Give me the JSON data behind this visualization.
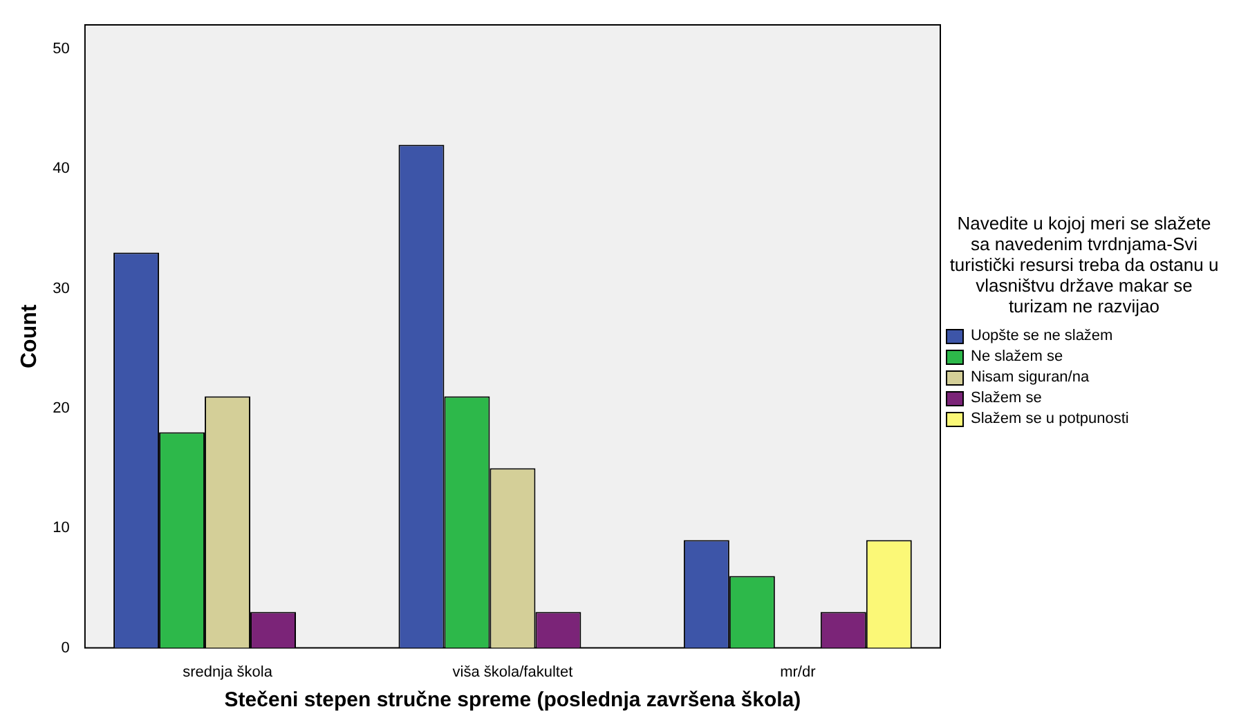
{
  "chart_data": {
    "type": "bar",
    "categories": [
      "srednja škola",
      "viša škola/fakultet",
      "mr/dr"
    ],
    "series": [
      {
        "name": "Uopšte se ne slažem",
        "color": "#3d55a8",
        "values": [
          33,
          42,
          9
        ]
      },
      {
        "name": "Ne slažem se",
        "color": "#2db84a",
        "values": [
          18,
          21,
          6
        ]
      },
      {
        "name": "Nisam siguran/na",
        "color": "#d4cf98",
        "values": [
          21,
          15,
          null
        ]
      },
      {
        "name": "Slažem se",
        "color": "#7b2478",
        "values": [
          3,
          3,
          3
        ]
      },
      {
        "name": "Slažem se u potpunosti",
        "color": "#fbf877",
        "values": [
          null,
          null,
          9
        ]
      }
    ],
    "xlabel": "Stečeni stepen stručne spreme (poslednja završena škola)",
    "ylabel": "Count",
    "legend_title": "Navedite u kojoj meri se slažete sa navedenim tvrdnjama-Svi turistički resursi treba da ostanu u vlasništvu države makar se turizam ne razvijao",
    "ylim": [
      0,
      52
    ],
    "yticks": [
      0,
      10,
      20,
      30,
      40,
      50
    ],
    "grid": false,
    "legend": "right"
  }
}
